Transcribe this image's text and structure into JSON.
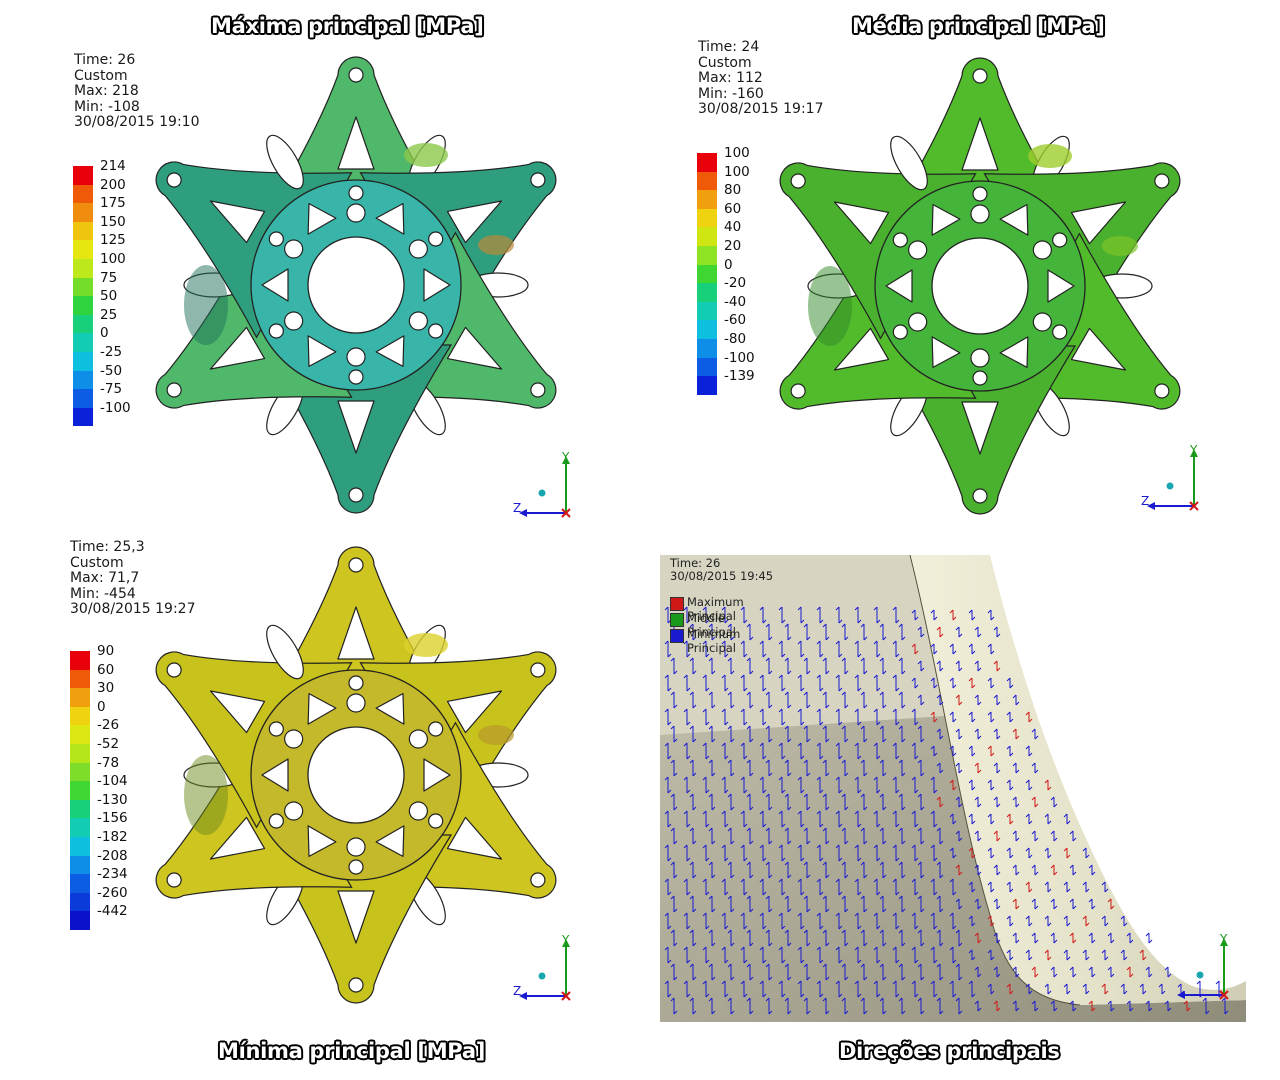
{
  "titles": {
    "max": "Máxima principal [MPa]",
    "mid": "Média principal [MPa]",
    "min": "Mínima principal [MPa]",
    "dir": "Direções principais"
  },
  "panels": {
    "max": {
      "info": [
        "Time: 26",
        "Custom",
        "Max: 218",
        "Min: -108",
        "30/08/2015 19:10"
      ],
      "legend": [
        {
          "label": "214",
          "color": "#e8000b"
        },
        {
          "label": "200",
          "color": "#ef5a09"
        },
        {
          "label": "175",
          "color": "#f08d0e"
        },
        {
          "label": "150",
          "color": "#efc510"
        },
        {
          "label": "125",
          "color": "#e6e610"
        },
        {
          "label": "100",
          "color": "#bde91c"
        },
        {
          "label": "75",
          "color": "#73dd2a"
        },
        {
          "label": "50",
          "color": "#2fd33d"
        },
        {
          "label": "25",
          "color": "#18d07a"
        },
        {
          "label": "0",
          "color": "#12cdb4"
        },
        {
          "label": "-25",
          "color": "#0fbfe0"
        },
        {
          "label": "-50",
          "color": "#0e8ee6"
        },
        {
          "label": "-75",
          "color": "#0c5ce4"
        },
        {
          "label": "-100",
          "color": "#0b20d9"
        }
      ]
    },
    "mid": {
      "info": [
        "Time: 24",
        "Custom",
        "Max: 112",
        "Min: -160",
        "30/08/2015 19:17"
      ],
      "legend": [
        {
          "label": "100",
          "color": "#e8000b"
        },
        {
          "label": "100",
          "color": "#ef5a09"
        },
        {
          "label": "80",
          "color": "#f0a00e"
        },
        {
          "label": "60",
          "color": "#efd310"
        },
        {
          "label": "40",
          "color": "#cfe612"
        },
        {
          "label": "20",
          "color": "#8ee322"
        },
        {
          "label": "0",
          "color": "#3fd632"
        },
        {
          "label": "-20",
          "color": "#18d07a"
        },
        {
          "label": "-40",
          "color": "#12cdb4"
        },
        {
          "label": "-60",
          "color": "#0fbfe0"
        },
        {
          "label": "-80",
          "color": "#0e8ee6"
        },
        {
          "label": "-100",
          "color": "#0c5ce4"
        },
        {
          "label": "-139",
          "color": "#0b20d9"
        }
      ]
    },
    "min": {
      "info": [
        "Time: 25,3",
        "Custom",
        "Max: 71,7",
        "Min: -454",
        "30/08/2015 19:27"
      ],
      "legend": [
        {
          "label": "90",
          "color": "#e8000b"
        },
        {
          "label": "60",
          "color": "#ef5a09"
        },
        {
          "label": "30",
          "color": "#f0a00e"
        },
        {
          "label": "0",
          "color": "#efd310"
        },
        {
          "label": "-26",
          "color": "#dde812"
        },
        {
          "label": "-52",
          "color": "#b5e61a"
        },
        {
          "label": "-78",
          "color": "#7edd28"
        },
        {
          "label": "-104",
          "color": "#3fd632"
        },
        {
          "label": "-130",
          "color": "#18d07a"
        },
        {
          "label": "-156",
          "color": "#12cdb4"
        },
        {
          "label": "-182",
          "color": "#0fbfe0"
        },
        {
          "label": "-208",
          "color": "#0e8ee6"
        },
        {
          "label": "-234",
          "color": "#0c5ce4"
        },
        {
          "label": "-260",
          "color": "#0b3cd9"
        },
        {
          "label": "-442",
          "color": "#0b10c9"
        }
      ]
    }
  },
  "directions": {
    "info": [
      "Time: 26",
      "30/08/2015 19:45"
    ],
    "legend": [
      {
        "label": "Maximum Principal",
        "color": "#d01818"
      },
      {
        "label": "Middle Principal",
        "color": "#1a9a1a"
      },
      {
        "label": "Minimum Principal",
        "color": "#1a1ad0"
      }
    ]
  },
  "triad": {
    "y": "Y",
    "z": "Z",
    "x": "X"
  }
}
